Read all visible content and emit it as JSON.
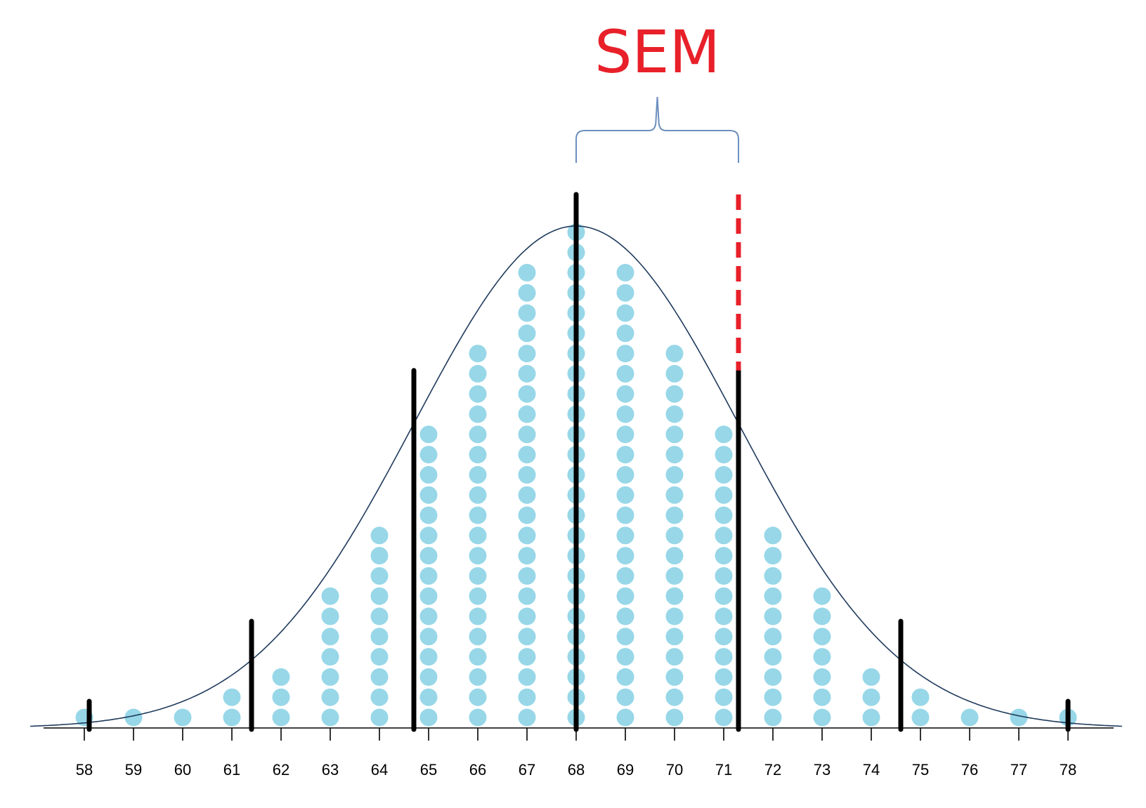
{
  "chart_data": {
    "type": "scatter",
    "title": "",
    "xlabel": "",
    "ylabel": "",
    "xlim": [
      57.5,
      79.0
    ],
    "x_ticks": [
      58,
      59,
      60,
      61,
      62,
      63,
      64,
      65,
      66,
      67,
      68,
      69,
      70,
      71,
      72,
      73,
      74,
      75,
      76,
      77,
      78
    ],
    "tick_labels": [
      "58",
      "59",
      "60",
      "61",
      "62",
      "63",
      "64",
      "65",
      "66",
      "67",
      "68",
      "69",
      "70",
      "71",
      "72",
      "73",
      "74",
      "75",
      "76",
      "77",
      "78"
    ],
    "dot_counts": [
      1,
      1,
      1,
      2,
      3,
      7,
      10,
      15,
      19,
      23,
      25,
      23,
      19,
      15,
      10,
      7,
      3,
      2,
      1,
      1,
      1
    ],
    "normal_curve": {
      "mean": 68,
      "sd": 3.3
    },
    "reference_lines": [
      {
        "x": 58.1,
        "style": "solid",
        "relative_height": 0.05
      },
      {
        "x": 61.4,
        "style": "solid",
        "relative_height": 0.2
      },
      {
        "x": 64.7,
        "style": "solid",
        "relative_height": 0.67
      },
      {
        "x": 68.0,
        "style": "solid",
        "relative_height": 1.0
      },
      {
        "x": 71.3,
        "style": "solid",
        "relative_height": 0.67
      },
      {
        "x": 74.6,
        "style": "solid",
        "relative_height": 0.2
      },
      {
        "x": 78.0,
        "style": "solid",
        "relative_height": 0.05
      }
    ],
    "sem_line": {
      "x": 71.3,
      "style": "dashed",
      "from_relative_height": 0.67,
      "to_relative_height": 1.0
    },
    "brace": {
      "x_start": 68.0,
      "x_end": 71.3
    },
    "annotation": "SEM",
    "colors": {
      "dots": "#97d7e8",
      "curve": "#1f3a5c",
      "lines": "#000000",
      "sem": "#e8202a",
      "brace": "#6c8fc0",
      "axis": "#000000"
    },
    "grid": false
  }
}
